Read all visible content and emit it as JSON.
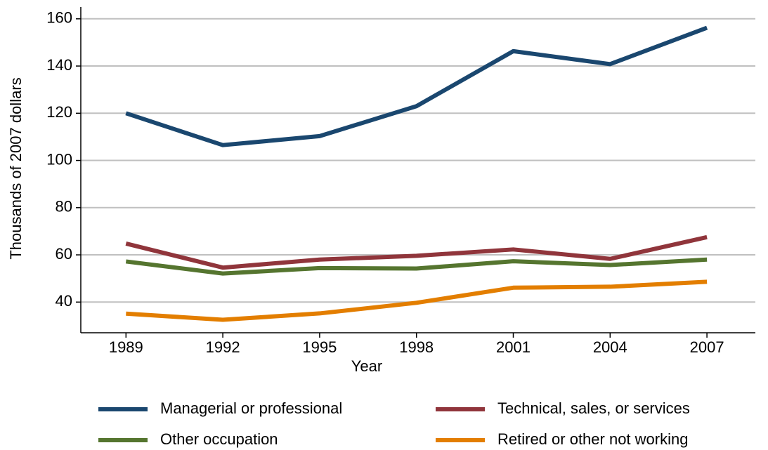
{
  "chart_data": {
    "type": "line",
    "x_label": "Year",
    "y_label": "Thousands of 2007 dollars",
    "x": [
      1989,
      1992,
      1995,
      1998,
      2001,
      2004,
      2007
    ],
    "xlim": [
      1987.6,
      2008.5
    ],
    "xticks": [
      1989,
      1992,
      1995,
      1998,
      2001,
      2004,
      2007
    ],
    "ylim": [
      27,
      165
    ],
    "yticks": [
      40,
      60,
      80,
      100,
      120,
      140,
      160
    ],
    "grid": true,
    "legend": "bottom",
    "series": [
      {
        "name": "Managerial or professional",
        "color": "#1a476f",
        "values": [
          120,
          106.5,
          110.3,
          123,
          146.3,
          140.8,
          156.2
        ]
      },
      {
        "name": "Technical, sales, or services",
        "color": "#90353b",
        "values": [
          64.8,
          54.6,
          58,
          59.6,
          62.3,
          58.3,
          67.5
        ]
      },
      {
        "name": "Other occupation",
        "color": "#55752f",
        "values": [
          57.2,
          52.1,
          54.4,
          54.2,
          57.3,
          55.7,
          58
        ]
      },
      {
        "name": "Retired or other not working",
        "color": "#e37e00",
        "values": [
          35.1,
          32.5,
          35.2,
          39.7,
          46.1,
          46.5,
          48.6
        ]
      }
    ]
  }
}
